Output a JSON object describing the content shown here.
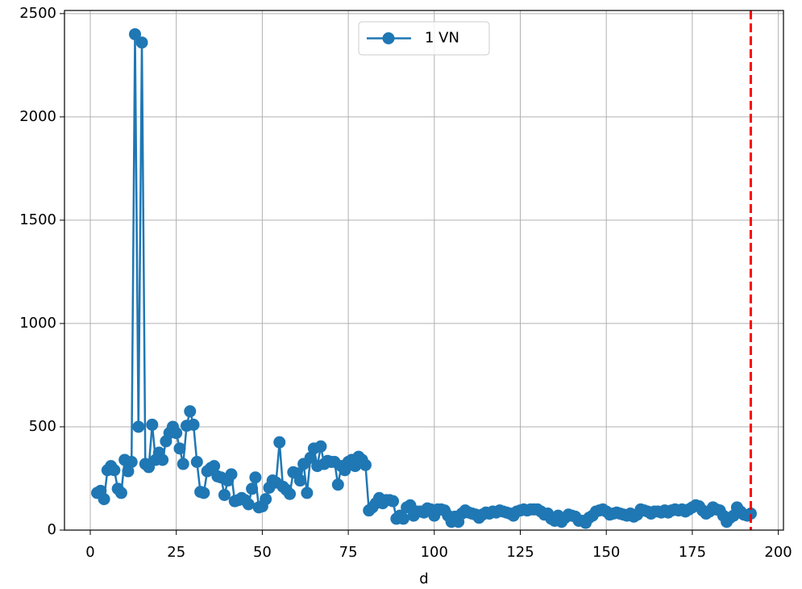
{
  "chart_data": {
    "type": "line",
    "xlabel": "d",
    "x": [
      2,
      3,
      4,
      5,
      6,
      7,
      8,
      9,
      10,
      11,
      12,
      13,
      14,
      15,
      16,
      17,
      18,
      19,
      20,
      21,
      22,
      23,
      24,
      25,
      26,
      27,
      28,
      29,
      30,
      31,
      32,
      33,
      34,
      35,
      36,
      37,
      38,
      39,
      40,
      41,
      42,
      43,
      44,
      45,
      46,
      47,
      48,
      49,
      50,
      51,
      52,
      53,
      54,
      55,
      56,
      57,
      58,
      59,
      60,
      61,
      62,
      63,
      64,
      65,
      66,
      67,
      68,
      69,
      70,
      71,
      72,
      73,
      74,
      75,
      76,
      77,
      78,
      79,
      80,
      81,
      82,
      83,
      84,
      85,
      86,
      87,
      88,
      89,
      90,
      91,
      92,
      93,
      94,
      95,
      96,
      97,
      98,
      99,
      100,
      101,
      102,
      103,
      104,
      105,
      106,
      107,
      108,
      109,
      110,
      111,
      112,
      113,
      114,
      115,
      116,
      117,
      118,
      119,
      120,
      121,
      122,
      123,
      124,
      125,
      126,
      127,
      128,
      129,
      130,
      131,
      132,
      133,
      134,
      135,
      136,
      137,
      138,
      139,
      140,
      141,
      142,
      143,
      144,
      145,
      146,
      147,
      148,
      149,
      150,
      151,
      152,
      153,
      154,
      155,
      156,
      157,
      158,
      159,
      160,
      161,
      162,
      163,
      164,
      165,
      166,
      167,
      168,
      169,
      170,
      171,
      172,
      173,
      174,
      175,
      176,
      177,
      178,
      179,
      180,
      181,
      182,
      183,
      184,
      185,
      186,
      187,
      188,
      189,
      190,
      191,
      192
    ],
    "series": [
      {
        "name": "1 VN",
        "color": "#1f77b4",
        "values": [
          180,
          190,
          150,
          290,
          310,
          290,
          200,
          180,
          340,
          285,
          330,
          2400,
          500,
          2360,
          320,
          305,
          510,
          340,
          375,
          340,
          430,
          470,
          500,
          470,
          395,
          320,
          505,
          575,
          510,
          330,
          185,
          180,
          285,
          300,
          310,
          260,
          255,
          170,
          240,
          270,
          140,
          145,
          155,
          145,
          125,
          200,
          255,
          110,
          115,
          150,
          205,
          240,
          230,
          425,
          210,
          195,
          175,
          280,
          275,
          240,
          320,
          180,
          350,
          395,
          310,
          405,
          320,
          335,
          330,
          330,
          220,
          310,
          290,
          330,
          340,
          310,
          355,
          340,
          315,
          95,
          110,
          130,
          155,
          130,
          145,
          145,
          140,
          55,
          70,
          55,
          110,
          120,
          70,
          90,
          90,
          85,
          105,
          100,
          70,
          100,
          100,
          95,
          70,
          40,
          65,
          40,
          80,
          95,
          85,
          80,
          75,
          60,
          75,
          85,
          80,
          90,
          85,
          95,
          90,
          85,
          80,
          70,
          90,
          95,
          100,
          95,
          100,
          100,
          100,
          90,
          75,
          80,
          55,
          45,
          70,
          40,
          60,
          75,
          70,
          65,
          45,
          45,
          35,
          60,
          70,
          90,
          95,
          100,
          90,
          75,
          80,
          85,
          80,
          75,
          70,
          80,
          65,
          75,
          100,
          95,
          90,
          80,
          90,
          90,
          85,
          95,
          85,
          95,
          100,
          95,
          100,
          90,
          100,
          110,
          120,
          115,
          95,
          80,
          90,
          110,
          100,
          95,
          70,
          40,
          60,
          70,
          110,
          90,
          75,
          70,
          80
        ]
      }
    ],
    "xlim": [
      -7.5,
      201.5
    ],
    "xticks": [
      0,
      25,
      50,
      75,
      100,
      125,
      150,
      175,
      200
    ],
    "ylim": [
      0,
      2515
    ],
    "yticks": [
      0,
      500,
      1000,
      1500,
      2000,
      2500
    ],
    "grid": true,
    "legend": "upper center",
    "vline": {
      "x": 192,
      "color": "#ff0000",
      "style": "dashed"
    }
  }
}
